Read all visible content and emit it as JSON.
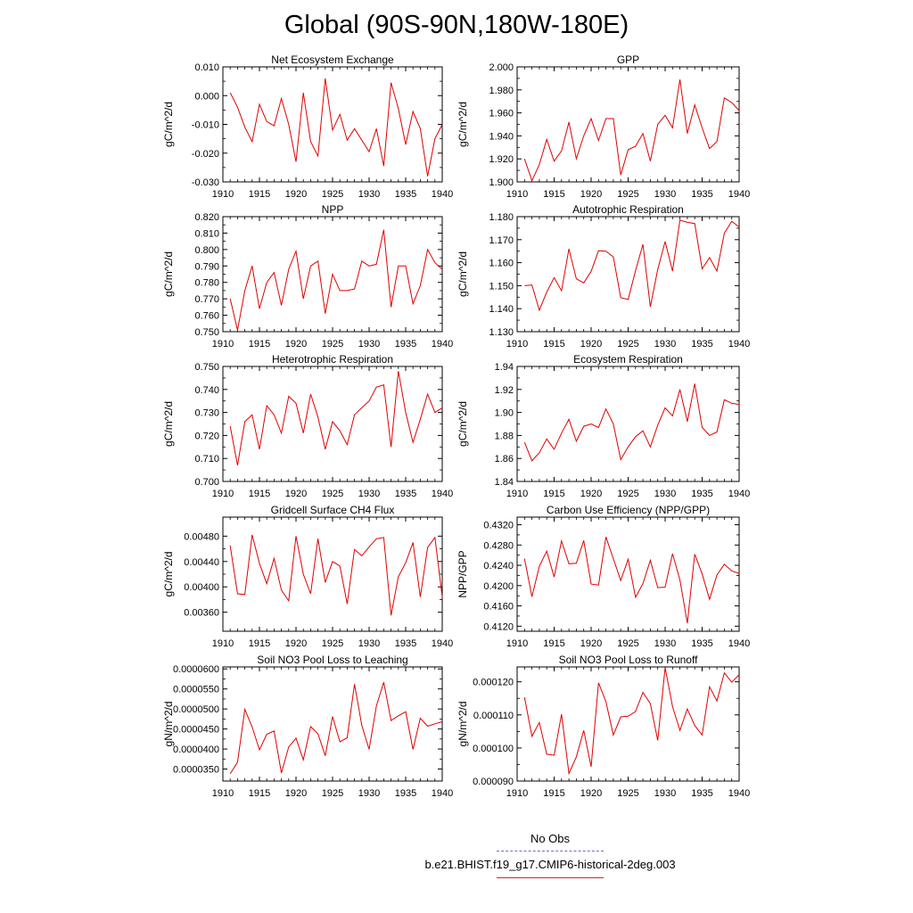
{
  "title": "Global (90S-90N,180W-180E)",
  "chart_data": [
    {
      "type": "line",
      "title": "Net Ecosystem Exchange",
      "ylabel": "gC/m^2/d",
      "xlim": [
        1910,
        1940
      ],
      "xticks": [
        1910,
        1915,
        1920,
        1925,
        1930,
        1935,
        1940
      ],
      "ylim": [
        -0.03,
        0.01
      ],
      "yticks": [
        "0.010",
        "0.000",
        "-0.010",
        "-0.020",
        "-0.030"
      ],
      "ytick_values": [
        0.01,
        0.0,
        -0.01,
        -0.02,
        -0.03
      ],
      "x": [
        1911,
        1912,
        1913,
        1914,
        1915,
        1916,
        1917,
        1918,
        1919,
        1920,
        1921,
        1922,
        1923,
        1924,
        1925,
        1926,
        1927,
        1928,
        1929,
        1930,
        1931,
        1932,
        1933,
        1934,
        1935,
        1936,
        1937,
        1938,
        1939,
        1940
      ],
      "series": [
        {
          "values": [
            0.001,
            -0.004,
            -0.011,
            -0.016,
            -0.003,
            -0.009,
            -0.0105,
            -0.001,
            -0.01,
            -0.023,
            0.001,
            -0.016,
            -0.021,
            0.006,
            -0.012,
            -0.0065,
            -0.0155,
            -0.0115,
            -0.0155,
            -0.0195,
            -0.0115,
            -0.0245,
            0.0045,
            -0.0045,
            -0.017,
            -0.0055,
            -0.0115,
            -0.028,
            -0.015,
            -0.01
          ]
        }
      ]
    },
    {
      "type": "line",
      "title": "GPP",
      "ylabel": "gC/m^2/d",
      "xlim": [
        1910,
        1940
      ],
      "xticks": [
        1910,
        1915,
        1920,
        1925,
        1930,
        1935,
        1940
      ],
      "ylim": [
        1.9,
        2.0
      ],
      "yticks": [
        "2.000",
        "1.980",
        "1.960",
        "1.940",
        "1.920",
        "1.900"
      ],
      "ytick_values": [
        2.0,
        1.98,
        1.96,
        1.94,
        1.92,
        1.9
      ],
      "x": [
        1911,
        1912,
        1913,
        1914,
        1915,
        1916,
        1917,
        1918,
        1919,
        1920,
        1921,
        1922,
        1923,
        1924,
        1925,
        1926,
        1927,
        1928,
        1929,
        1930,
        1931,
        1932,
        1933,
        1934,
        1935,
        1936,
        1937,
        1938,
        1939,
        1940
      ],
      "series": [
        {
          "values": [
            1.92,
            1.901,
            1.915,
            1.937,
            1.918,
            1.927,
            1.952,
            1.92,
            1.94,
            1.955,
            1.936,
            1.955,
            1.955,
            1.906,
            1.928,
            1.931,
            1.942,
            1.918,
            1.95,
            1.958,
            1.947,
            1.989,
            1.942,
            1.967,
            1.947,
            1.929,
            1.935,
            1.973,
            1.969,
            1.962
          ]
        }
      ]
    },
    {
      "type": "line",
      "title": "NPP",
      "ylabel": "gC/m^2/d",
      "xlim": [
        1910,
        1940
      ],
      "xticks": [
        1910,
        1915,
        1920,
        1925,
        1930,
        1935,
        1940
      ],
      "ylim": [
        0.75,
        0.82
      ],
      "yticks": [
        "0.820",
        "0.810",
        "0.800",
        "0.790",
        "0.780",
        "0.770",
        "0.760",
        "0.750"
      ],
      "ytick_values": [
        0.82,
        0.81,
        0.8,
        0.79,
        0.78,
        0.77,
        0.76,
        0.75
      ],
      "x": [
        1911,
        1912,
        1913,
        1914,
        1915,
        1916,
        1917,
        1918,
        1919,
        1920,
        1921,
        1922,
        1923,
        1924,
        1925,
        1926,
        1927,
        1928,
        1929,
        1930,
        1931,
        1932,
        1933,
        1934,
        1935,
        1936,
        1937,
        1938,
        1939,
        1940
      ],
      "series": [
        {
          "values": [
            0.77,
            0.751,
            0.775,
            0.79,
            0.764,
            0.78,
            0.786,
            0.766,
            0.788,
            0.799,
            0.77,
            0.79,
            0.793,
            0.761,
            0.785,
            0.775,
            0.775,
            0.776,
            0.793,
            0.79,
            0.791,
            0.812,
            0.765,
            0.79,
            0.79,
            0.767,
            0.778,
            0.8,
            0.792,
            0.788
          ]
        }
      ]
    },
    {
      "type": "line",
      "title": "Autotrophic Respiration",
      "ylabel": "gC/m^2/d",
      "xlim": [
        1910,
        1940
      ],
      "xticks": [
        1910,
        1915,
        1920,
        1925,
        1930,
        1935,
        1940
      ],
      "ylim": [
        1.13,
        1.18
      ],
      "yticks": [
        "1.180",
        "1.170",
        "1.160",
        "1.150",
        "1.140",
        "1.130"
      ],
      "ytick_values": [
        1.18,
        1.17,
        1.16,
        1.15,
        1.14,
        1.13
      ],
      "x": [
        1911,
        1912,
        1913,
        1914,
        1915,
        1916,
        1917,
        1918,
        1919,
        1920,
        1921,
        1922,
        1923,
        1924,
        1925,
        1926,
        1927,
        1928,
        1929,
        1930,
        1931,
        1932,
        1933,
        1934,
        1935,
        1936,
        1937,
        1938,
        1939,
        1940
      ],
      "series": [
        {
          "values": [
            1.15,
            1.1503,
            1.1393,
            1.1472,
            1.1535,
            1.1478,
            1.166,
            1.153,
            1.1512,
            1.1562,
            1.1652,
            1.165,
            1.1625,
            1.1448,
            1.144,
            1.1565,
            1.168,
            1.1408,
            1.157,
            1.1692,
            1.1563,
            1.1785,
            1.1775,
            1.177,
            1.1573,
            1.1622,
            1.1563,
            1.1728,
            1.178,
            1.1755
          ]
        }
      ]
    },
    {
      "type": "line",
      "title": "Heterotrophic Respiration",
      "ylabel": "gC/m^2/d",
      "xlim": [
        1910,
        1940
      ],
      "xticks": [
        1910,
        1915,
        1920,
        1925,
        1930,
        1935,
        1940
      ],
      "ylim": [
        0.7,
        0.75
      ],
      "yticks": [
        "0.750",
        "0.740",
        "0.730",
        "0.720",
        "0.710",
        "0.700"
      ],
      "ytick_values": [
        0.75,
        0.74,
        0.73,
        0.72,
        0.71,
        0.7
      ],
      "x": [
        1911,
        1912,
        1913,
        1914,
        1915,
        1916,
        1917,
        1918,
        1919,
        1920,
        1921,
        1922,
        1923,
        1924,
        1925,
        1926,
        1927,
        1928,
        1929,
        1930,
        1931,
        1932,
        1933,
        1934,
        1935,
        1936,
        1937,
        1938,
        1939,
        1940
      ],
      "series": [
        {
          "values": [
            0.724,
            0.707,
            0.726,
            0.729,
            0.714,
            0.733,
            0.729,
            0.721,
            0.737,
            0.734,
            0.721,
            0.738,
            0.728,
            0.714,
            0.726,
            0.722,
            0.716,
            0.729,
            0.732,
            0.735,
            0.741,
            0.742,
            0.715,
            0.748,
            0.73,
            0.717,
            0.727,
            0.738,
            0.73,
            0.732
          ]
        }
      ]
    },
    {
      "type": "line",
      "title": "Ecosystem Respiration",
      "ylabel": "gC/m^2/d",
      "xlim": [
        1910,
        1940
      ],
      "xticks": [
        1910,
        1915,
        1920,
        1925,
        1930,
        1935,
        1940
      ],
      "ylim": [
        1.84,
        1.94
      ],
      "yticks": [
        "1.94",
        "1.92",
        "1.90",
        "1.88",
        "1.86",
        "1.84"
      ],
      "ytick_values": [
        1.94,
        1.92,
        1.9,
        1.88,
        1.86,
        1.84
      ],
      "x": [
        1911,
        1912,
        1913,
        1914,
        1915,
        1916,
        1917,
        1918,
        1919,
        1920,
        1921,
        1922,
        1923,
        1924,
        1925,
        1926,
        1927,
        1928,
        1929,
        1930,
        1931,
        1932,
        1933,
        1934,
        1935,
        1936,
        1937,
        1938,
        1939,
        1940
      ],
      "series": [
        {
          "values": [
            1.874,
            1.858,
            1.865,
            1.877,
            1.868,
            1.882,
            1.894,
            1.875,
            1.888,
            1.89,
            1.887,
            1.903,
            1.89,
            1.859,
            1.87,
            1.879,
            1.884,
            1.87,
            1.889,
            1.904,
            1.897,
            1.92,
            1.892,
            1.925,
            1.887,
            1.88,
            1.883,
            1.911,
            1.908,
            1.907
          ]
        }
      ]
    },
    {
      "type": "line",
      "title": "Gridcell Surface CH4 Flux",
      "ylabel": "gC/m^2/d",
      "xlim": [
        1910,
        1940
      ],
      "xticks": [
        1910,
        1915,
        1920,
        1925,
        1930,
        1935,
        1940
      ],
      "ylim": [
        0.0033,
        0.0051
      ],
      "yticks": [
        "0.00480",
        "0.00440",
        "0.00400",
        "0.00360"
      ],
      "ytick_values": [
        0.0048,
        0.0044,
        0.004,
        0.0036
      ],
      "x": [
        1911,
        1912,
        1913,
        1914,
        1915,
        1916,
        1917,
        1918,
        1919,
        1920,
        1921,
        1922,
        1923,
        1924,
        1925,
        1926,
        1927,
        1928,
        1929,
        1930,
        1931,
        1932,
        1933,
        1934,
        1935,
        1936,
        1937,
        1938,
        1939,
        1940
      ],
      "series": [
        {
          "values": [
            0.00465,
            0.00389,
            0.00388,
            0.00482,
            0.00437,
            0.00405,
            0.00445,
            0.00395,
            0.00378,
            0.0048,
            0.0042,
            0.00389,
            0.00476,
            0.00407,
            0.0044,
            0.00433,
            0.00373,
            0.00459,
            0.00449,
            0.00463,
            0.00476,
            0.00478,
            0.00355,
            0.00416,
            0.00438,
            0.0047,
            0.00384,
            0.00462,
            0.00478,
            0.00384
          ]
        }
      ]
    },
    {
      "type": "line",
      "title": "Carbon Use Efficiency (NPP/GPP)",
      "ylabel": "NPP/GPP",
      "xlim": [
        1910,
        1940
      ],
      "xticks": [
        1910,
        1915,
        1920,
        1925,
        1930,
        1935,
        1940
      ],
      "ylim": [
        0.411,
        0.4335
      ],
      "yticks": [
        "0.4320",
        "0.4280",
        "0.4240",
        "0.4200",
        "0.4160",
        "0.4120"
      ],
      "ytick_values": [
        0.432,
        0.428,
        0.424,
        0.42,
        0.416,
        0.412
      ],
      "x": [
        1911,
        1912,
        1913,
        1914,
        1915,
        1916,
        1917,
        1918,
        1919,
        1920,
        1921,
        1922,
        1923,
        1924,
        1925,
        1926,
        1927,
        1928,
        1929,
        1930,
        1931,
        1932,
        1933,
        1934,
        1935,
        1936,
        1937,
        1938,
        1939,
        1940
      ],
      "series": [
        {
          "values": [
            0.4253,
            0.4178,
            0.4238,
            0.4268,
            0.4217,
            0.4288,
            0.4243,
            0.4244,
            0.4289,
            0.4203,
            0.4201,
            0.4296,
            0.4253,
            0.421,
            0.4252,
            0.4177,
            0.4204,
            0.425,
            0.4196,
            0.4197,
            0.4263,
            0.4211,
            0.4126,
            0.4262,
            0.4223,
            0.4173,
            0.4221,
            0.4242,
            0.4229,
            0.4224
          ]
        }
      ]
    },
    {
      "type": "line",
      "title": "Soil NO3 Pool Loss to Leaching",
      "ylabel": "gN/m^2/d",
      "xlim": [
        1910,
        1940
      ],
      "xticks": [
        1910,
        1915,
        1920,
        1925,
        1930,
        1935,
        1940
      ],
      "ylim": [
        3.2e-05,
        6.05e-05
      ],
      "yticks": [
        "0.0000600",
        "0.0000550",
        "0.0000500",
        "0.0000450",
        "0.0000400",
        "0.0000350"
      ],
      "ytick_values": [
        6e-05,
        5.5e-05,
        5e-05,
        4.5e-05,
        4e-05,
        3.5e-05
      ],
      "x": [
        1911,
        1912,
        1913,
        1914,
        1915,
        1916,
        1917,
        1918,
        1919,
        1920,
        1921,
        1922,
        1923,
        1924,
        1925,
        1926,
        1927,
        1928,
        1929,
        1930,
        1931,
        1932,
        1933,
        1934,
        1935,
        1936,
        1937,
        1938,
        1939,
        1940
      ],
      "series": [
        {
          "values": [
            3.38e-05,
            3.67e-05,
            4.99e-05,
            4.55e-05,
            3.98e-05,
            4.37e-05,
            4.45e-05,
            3.4e-05,
            4.05e-05,
            4.27e-05,
            3.73e-05,
            4.56e-05,
            4.38e-05,
            3.83e-05,
            4.81e-05,
            4.18e-05,
            4.28e-05,
            5.62e-05,
            4.59e-05,
            3.99e-05,
            5.08e-05,
            5.67e-05,
            4.71e-05,
            4.83e-05,
            4.93e-05,
            3.99e-05,
            4.77e-05,
            4.57e-05,
            4.63e-05,
            4.68e-05
          ]
        }
      ]
    },
    {
      "type": "line",
      "title": "Soil NO3 Pool Loss to Runoff",
      "ylabel": "gN/m^2/d",
      "xlim": [
        1910,
        1940
      ],
      "xticks": [
        1910,
        1915,
        1920,
        1925,
        1930,
        1935,
        1940
      ],
      "ylim": [
        9e-05,
        0.0001245
      ],
      "yticks": [
        "0.000120",
        "0.000110",
        "0.000100",
        "0.000090"
      ],
      "ytick_values": [
        0.00012,
        0.00011,
        0.0001,
        9e-05
      ],
      "x": [
        1911,
        1912,
        1913,
        1914,
        1915,
        1916,
        1917,
        1918,
        1919,
        1920,
        1921,
        1922,
        1923,
        1924,
        1925,
        1926,
        1927,
        1928,
        1929,
        1930,
        1931,
        1932,
        1933,
        1934,
        1935,
        1936,
        1937,
        1938,
        1939,
        1940
      ],
      "series": [
        {
          "values": [
            0.0001153,
            0.0001035,
            0.0001077,
            9.81e-05,
            9.78e-05,
            0.0001102,
            9.23e-05,
            9.73e-05,
            0.0001053,
            9.43e-05,
            0.0001197,
            0.000114,
            0.0001039,
            0.0001094,
            0.0001096,
            0.000111,
            0.0001168,
            0.0001134,
            0.0001023,
            0.0001243,
            0.0001125,
            0.0001053,
            0.0001118,
            0.0001068,
            0.0001039,
            0.0001185,
            0.0001142,
            0.0001227,
            0.0001199,
            0.0001221
          ]
        }
      ]
    }
  ],
  "legend": {
    "obs_label": "No Obs",
    "obs_color": "#6a6ad8",
    "model_label": "b.e21.BHIST.f19_g17.CMIP6-historical-2deg.003",
    "model_color": "#dd2020"
  },
  "line_color": "#e00000"
}
